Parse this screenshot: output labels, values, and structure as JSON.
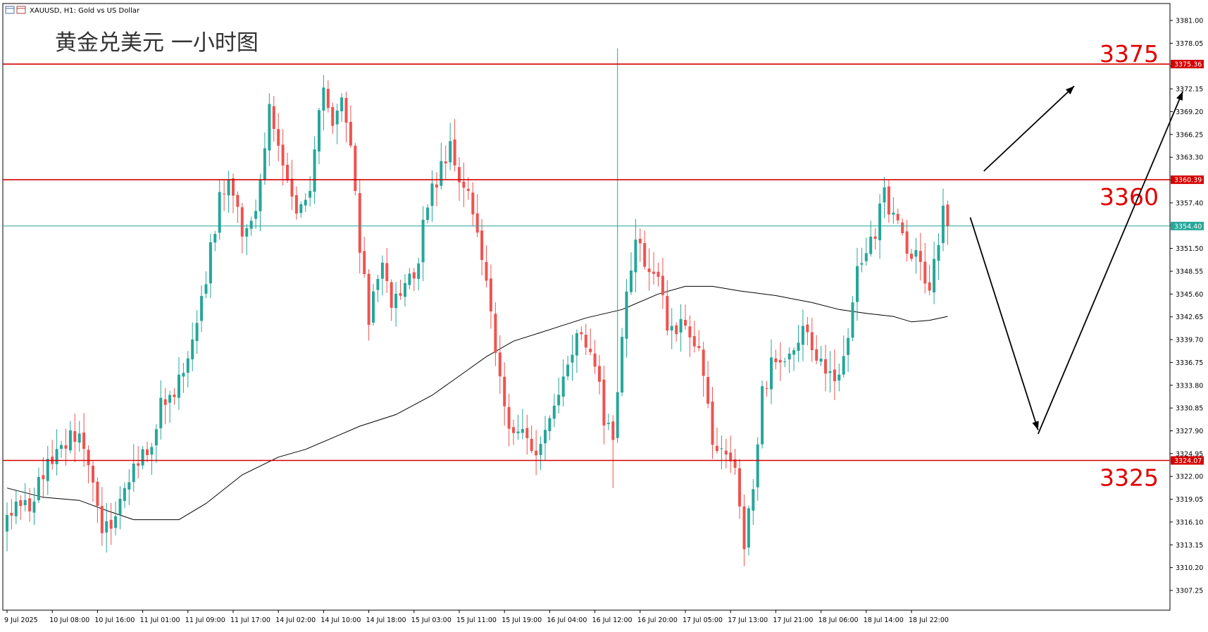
{
  "header": {
    "symbol_caption": "XAUUSD, H1:  Gold vs US Dollar",
    "title": "黄金兑美元 一小时图"
  },
  "colors": {
    "bull": "#26a69a",
    "bear": "#ef5350",
    "level_line": "#d50000",
    "price_line": "#26a69a",
    "ma_line": "#000000",
    "axis_text": "#000000",
    "annotation": "#e00000"
  },
  "chart_data": {
    "type": "candlestick",
    "symbol": "XAUUSD",
    "timeframe": "H1",
    "ylim": [
      3304.5,
      3382.5
    ],
    "y_ticks": [
      "3381.00",
      "3378.05",
      "3375.10",
      "3372.15",
      "3369.20",
      "3366.25",
      "3363.30",
      "3360.35",
      "3357.40",
      "3354.45",
      "3351.50",
      "3348.55",
      "3345.60",
      "3342.65",
      "3339.70",
      "3336.75",
      "3333.80",
      "3330.85",
      "3327.90",
      "3324.95",
      "3322.00",
      "3319.05",
      "3316.10",
      "3313.15",
      "3310.20",
      "3307.25"
    ],
    "x_ticks": [
      {
        "label": "9 Jul 2025",
        "index": 0
      },
      {
        "label": "10 Jul 08:00",
        "index": 10
      },
      {
        "label": "10 Jul 16:00",
        "index": 20
      },
      {
        "label": "11 Jul 01:00",
        "index": 30
      },
      {
        "label": "11 Jul 09:00",
        "index": 40
      },
      {
        "label": "11 Jul 17:00",
        "index": 50
      },
      {
        "label": "14 Jul 02:00",
        "index": 60
      },
      {
        "label": "14 Jul 10:00",
        "index": 70
      },
      {
        "label": "14 Jul 18:00",
        "index": 80
      },
      {
        "label": "15 Jul 03:00",
        "index": 90
      },
      {
        "label": "15 Jul 11:00",
        "index": 100
      },
      {
        "label": "15 Jul 19:00",
        "index": 110
      },
      {
        "label": "16 Jul 04:00",
        "index": 120
      },
      {
        "label": "16 Jul 12:00",
        "index": 130
      },
      {
        "label": "16 Jul 20:00",
        "index": 140
      },
      {
        "label": "17 Jul 05:00",
        "index": 150
      },
      {
        "label": "17 Jul 13:00",
        "index": 160
      },
      {
        "label": "17 Jul 21:00",
        "index": 170
      },
      {
        "label": "18 Jul 06:00",
        "index": 180
      },
      {
        "label": "18 Jul 14:00",
        "index": 190
      },
      {
        "label": "18 Jul 22:00",
        "index": 200
      }
    ],
    "levels": [
      {
        "value": 3375.36,
        "label": "3375.36",
        "annotation": "3375"
      },
      {
        "value": 3360.39,
        "label": "3360.39",
        "annotation": "3360"
      },
      {
        "value": 3324.07,
        "label": "3324.07",
        "annotation": "3325"
      }
    ],
    "current_price": {
      "value": 3354.4,
      "label": "3354.40"
    },
    "anchors": [
      {
        "i": 0,
        "p": 3316
      },
      {
        "i": 2,
        "p": 3320
      },
      {
        "i": 5,
        "p": 3318
      },
      {
        "i": 8,
        "p": 3322
      },
      {
        "i": 12,
        "p": 3326
      },
      {
        "i": 16,
        "p": 3328
      },
      {
        "i": 19,
        "p": 3322
      },
      {
        "i": 21,
        "p": 3314
      },
      {
        "i": 25,
        "p": 3318
      },
      {
        "i": 28,
        "p": 3323
      },
      {
        "i": 32,
        "p": 3326
      },
      {
        "i": 34,
        "p": 3331
      },
      {
        "i": 38,
        "p": 3334
      },
      {
        "i": 42,
        "p": 3342
      },
      {
        "i": 44,
        "p": 3348
      },
      {
        "i": 47,
        "p": 3358
      },
      {
        "i": 49,
        "p": 3361
      },
      {
        "i": 52,
        "p": 3354
      },
      {
        "i": 55,
        "p": 3357
      },
      {
        "i": 58,
        "p": 3370
      },
      {
        "i": 61,
        "p": 3362
      },
      {
        "i": 64,
        "p": 3356
      },
      {
        "i": 67,
        "p": 3360
      },
      {
        "i": 70,
        "p": 3372
      },
      {
        "i": 72,
        "p": 3367
      },
      {
        "i": 74,
        "p": 3372
      },
      {
        "i": 76,
        "p": 3365
      },
      {
        "i": 78,
        "p": 3352
      },
      {
        "i": 80,
        "p": 3343
      },
      {
        "i": 83,
        "p": 3350
      },
      {
        "i": 85,
        "p": 3344
      },
      {
        "i": 88,
        "p": 3346
      },
      {
        "i": 91,
        "p": 3350
      },
      {
        "i": 93,
        "p": 3358
      },
      {
        "i": 96,
        "p": 3362
      },
      {
        "i": 98,
        "p": 3364
      },
      {
        "i": 101,
        "p": 3360
      },
      {
        "i": 104,
        "p": 3354
      },
      {
        "i": 106,
        "p": 3348
      },
      {
        "i": 108,
        "p": 3338
      },
      {
        "i": 110,
        "p": 3330
      },
      {
        "i": 113,
        "p": 3328
      },
      {
        "i": 116,
        "p": 3325
      },
      {
        "i": 119,
        "p": 3328
      },
      {
        "i": 121,
        "p": 3332
      },
      {
        "i": 124,
        "p": 3337
      },
      {
        "i": 127,
        "p": 3341
      },
      {
        "i": 130,
        "p": 3337
      },
      {
        "i": 132,
        "p": 3330
      },
      {
        "i": 134,
        "p": 3327
      },
      {
        "i": 136,
        "p": 3340
      },
      {
        "i": 138,
        "p": 3350
      },
      {
        "i": 140,
        "p": 3353
      },
      {
        "i": 142,
        "p": 3348
      },
      {
        "i": 144,
        "p": 3349
      },
      {
        "i": 146,
        "p": 3341
      },
      {
        "i": 149,
        "p": 3342
      },
      {
        "i": 152,
        "p": 3340
      },
      {
        "i": 154,
        "p": 3336
      },
      {
        "i": 156,
        "p": 3326
      },
      {
        "i": 159,
        "p": 3326
      },
      {
        "i": 161,
        "p": 3322
      },
      {
        "i": 163,
        "p": 3313
      },
      {
        "i": 165,
        "p": 3320
      },
      {
        "i": 167,
        "p": 3333
      },
      {
        "i": 170,
        "p": 3338
      },
      {
        "i": 173,
        "p": 3337
      },
      {
        "i": 176,
        "p": 3342
      },
      {
        "i": 179,
        "p": 3338
      },
      {
        "i": 182,
        "p": 3335
      },
      {
        "i": 184,
        "p": 3334
      },
      {
        "i": 186,
        "p": 3340
      },
      {
        "i": 188,
        "p": 3348
      },
      {
        "i": 190,
        "p": 3352
      },
      {
        "i": 192,
        "p": 3354
      },
      {
        "i": 194,
        "p": 3359
      },
      {
        "i": 196,
        "p": 3355
      },
      {
        "i": 198,
        "p": 3353
      },
      {
        "i": 200,
        "p": 3351
      },
      {
        "i": 202,
        "p": 3349
      },
      {
        "i": 204,
        "p": 3347
      },
      {
        "i": 206,
        "p": 3351
      },
      {
        "i": 207,
        "p": 3356
      },
      {
        "i": 208,
        "p": 3354.4
      }
    ],
    "spikes": [
      {
        "i": 135,
        "high": 3377.4
      },
      {
        "i": 134,
        "low": 3320.5
      }
    ],
    "moving_average": [
      {
        "i": 0,
        "p": 3320.5
      },
      {
        "i": 8,
        "p": 3319.3
      },
      {
        "i": 16,
        "p": 3318.9
      },
      {
        "i": 22,
        "p": 3317.6
      },
      {
        "i": 28,
        "p": 3316.4
      },
      {
        "i": 38,
        "p": 3316.4
      },
      {
        "i": 44,
        "p": 3318.5
      },
      {
        "i": 52,
        "p": 3322.2
      },
      {
        "i": 60,
        "p": 3324.5
      },
      {
        "i": 66,
        "p": 3325.5
      },
      {
        "i": 72,
        "p": 3327.0
      },
      {
        "i": 78,
        "p": 3328.5
      },
      {
        "i": 86,
        "p": 3330.0
      },
      {
        "i": 94,
        "p": 3332.5
      },
      {
        "i": 100,
        "p": 3335.0
      },
      {
        "i": 106,
        "p": 3337.5
      },
      {
        "i": 112,
        "p": 3339.5
      },
      {
        "i": 120,
        "p": 3341.0
      },
      {
        "i": 128,
        "p": 3342.5
      },
      {
        "i": 136,
        "p": 3343.6
      },
      {
        "i": 144,
        "p": 3345.6
      },
      {
        "i": 150,
        "p": 3346.6
      },
      {
        "i": 156,
        "p": 3346.6
      },
      {
        "i": 162,
        "p": 3346.0
      },
      {
        "i": 170,
        "p": 3345.4
      },
      {
        "i": 178,
        "p": 3344.5
      },
      {
        "i": 184,
        "p": 3343.6
      },
      {
        "i": 190,
        "p": 3343.1
      },
      {
        "i": 196,
        "p": 3342.7
      },
      {
        "i": 200,
        "p": 3342.0
      },
      {
        "i": 204,
        "p": 3342.2
      },
      {
        "i": 208,
        "p": 3342.7
      }
    ],
    "arrows": [
      {
        "from": {
          "i": 216,
          "p": 3361.5
        },
        "to": {
          "i": 236,
          "p": 3372.5
        }
      },
      {
        "from": {
          "i": 213,
          "p": 3355.5
        },
        "to": {
          "i": 228,
          "p": 3328.0
        }
      },
      {
        "from": {
          "i": 228,
          "p": 3327.5
        },
        "to": {
          "i": 260,
          "p": 3371.8
        }
      }
    ]
  }
}
